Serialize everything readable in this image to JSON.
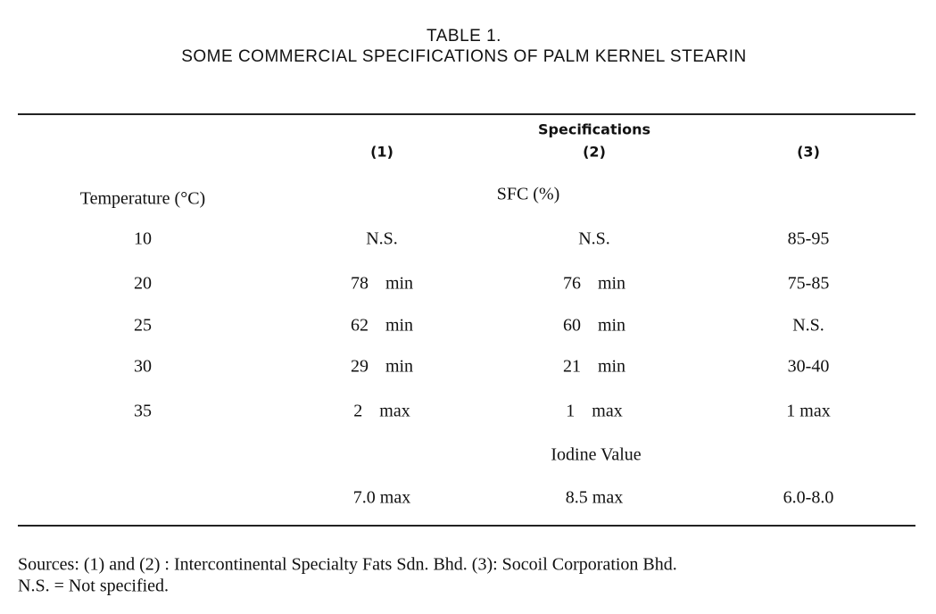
{
  "title": "TABLE 1.",
  "subtitle": "SOME COMMERCIAL SPECIFICATIONS OF PALM KERNEL STEARIN",
  "table": {
    "group_header": "Specifications",
    "columns": [
      "(1)",
      "(2)",
      "(3)"
    ],
    "row_header": "Temperature (°C)",
    "sfc": {
      "label": "SFC (%)",
      "rows": [
        [
          "10",
          "N.S.",
          "N.S.",
          "85-95"
        ],
        [
          "20",
          "78 min",
          "76 min",
          "75-85"
        ],
        [
          "25",
          "62 min",
          "60 min",
          "N.S."
        ],
        [
          "30",
          "29 min",
          "21 min",
          "30-40"
        ],
        [
          "35",
          "2 max",
          "1 max",
          "1 max"
        ]
      ]
    },
    "iodine": {
      "label": "Iodine Value",
      "values": [
        "7.0 max",
        "8.5 max",
        "6.0-8.0"
      ]
    }
  },
  "footnotes": [
    "Sources: (1) and (2) : Intercontinental Specialty Fats Sdn. Bhd. (3): Socoil Corporation Bhd.",
    "N.S. = Not specified."
  ]
}
